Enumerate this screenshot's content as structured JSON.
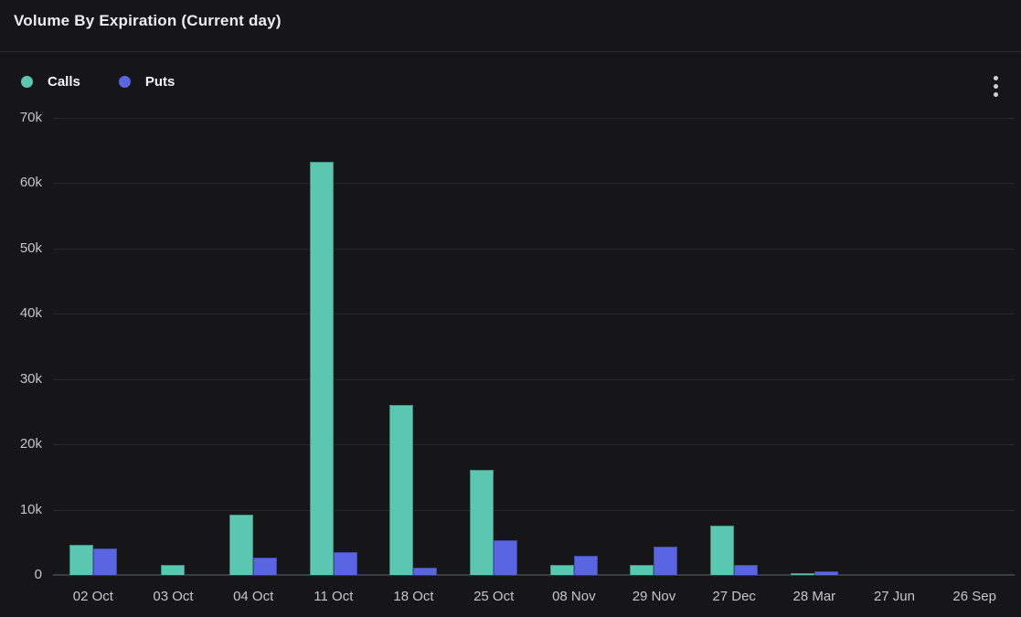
{
  "header": {
    "title": "Volume By Expiration (Current day)"
  },
  "legend": {
    "items": [
      {
        "label": "Calls",
        "color": "#5cc7b1"
      },
      {
        "label": "Puts",
        "color": "#5a66e1"
      }
    ]
  },
  "menu": {
    "icon": "vertical-ellipsis-icon"
  },
  "colors": {
    "background": "#161618",
    "divider": "#2c2c2e",
    "gridline": "#242628",
    "axis_line": "#3a3d40",
    "tick_label": "#c6c6c6",
    "title_text": "#ededed",
    "calls": "#5cc7b1",
    "puts": "#5a66e1"
  },
  "chart_data": {
    "type": "bar",
    "title": "Volume By Expiration (Current day)",
    "categories": [
      "02 Oct",
      "03 Oct",
      "04 Oct",
      "11 Oct",
      "18 Oct",
      "25 Oct",
      "08 Nov",
      "29 Nov",
      "27 Dec",
      "28 Mar",
      "27 Jun",
      "26 Sep"
    ],
    "series": [
      {
        "name": "Calls",
        "color": "#5cc7b1",
        "values": [
          4600,
          1600,
          9300,
          63300,
          26000,
          16100,
          1500,
          1500,
          7500,
          300,
          0,
          0
        ]
      },
      {
        "name": "Puts",
        "color": "#5a66e1",
        "values": [
          4100,
          0,
          2700,
          3500,
          1100,
          5300,
          2900,
          4400,
          1500,
          550,
          0,
          0
        ]
      }
    ],
    "xlabel": "",
    "ylabel": "",
    "ylim": [
      0,
      70000
    ],
    "yticks": [
      {
        "value": 0,
        "label": "0"
      },
      {
        "value": 10000,
        "label": "10k"
      },
      {
        "value": 20000,
        "label": "20k"
      },
      {
        "value": 30000,
        "label": "30k"
      },
      {
        "value": 40000,
        "label": "40k"
      },
      {
        "value": 50000,
        "label": "50k"
      },
      {
        "value": 60000,
        "label": "60k"
      },
      {
        "value": 70000,
        "label": "70k"
      }
    ],
    "grid": true,
    "legend_position": "top-left"
  }
}
